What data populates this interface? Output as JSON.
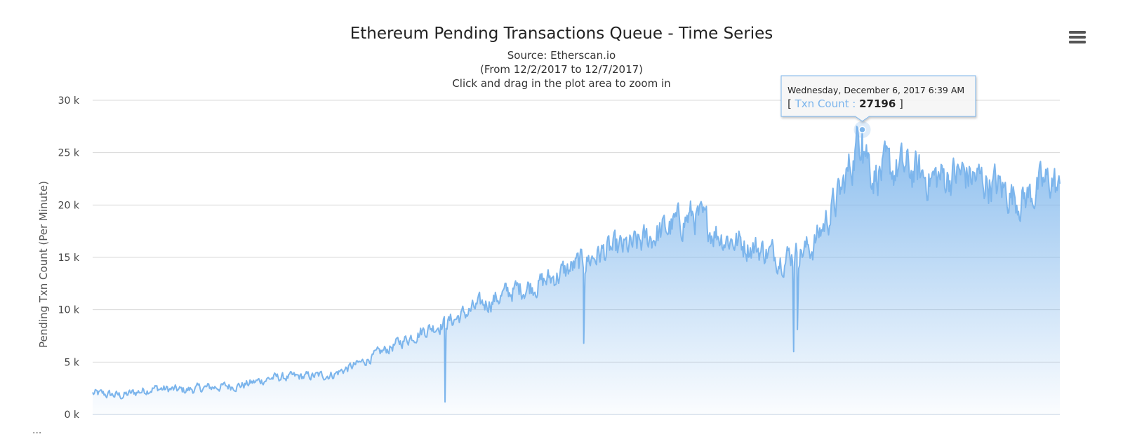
{
  "chart_data": {
    "type": "area",
    "title": "Ethereum Pending Transactions Queue - Time Series",
    "subtitle": [
      "Source: Etherscan.io",
      "(From 12/2/2017 to 12/7/2017)",
      "Click and drag in the plot area to zoom in"
    ],
    "ylabel": "Pending Txn Count (Per Minute)",
    "xlabel": "",
    "ylim": [
      0,
      30000
    ],
    "y_ticks": [
      0,
      5000,
      10000,
      15000,
      20000,
      25000,
      30000
    ],
    "y_tick_labels": [
      "0 k",
      "5 k",
      "10 k",
      "15 k",
      "20 k",
      "25 k",
      "30 k"
    ],
    "x_range": [
      "2017-12-02T00:00",
      "2017-12-07T09:00"
    ],
    "grid": true,
    "legend": "none",
    "series": [
      {
        "name": "Txn Count",
        "color": "#7cb5ec",
        "x": [
          "2017-12-02T00:00",
          "2017-12-02T04:00",
          "2017-12-02T08:00",
          "2017-12-02T12:00",
          "2017-12-02T16:00",
          "2017-12-02T20:00",
          "2017-12-03T00:00",
          "2017-12-03T04:00",
          "2017-12-03T08:00",
          "2017-12-03T12:00",
          "2017-12-03T16:00",
          "2017-12-03T20:00",
          "2017-12-04T00:00",
          "2017-12-04T04:00",
          "2017-12-04T08:00",
          "2017-12-04T12:00",
          "2017-12-04T16:00",
          "2017-12-04T20:00",
          "2017-12-05T00:00",
          "2017-12-05T04:00",
          "2017-12-05T08:00",
          "2017-12-05T12:00",
          "2017-12-05T16:00",
          "2017-12-05T20:00",
          "2017-12-06T00:00",
          "2017-12-06T04:00",
          "2017-12-06T06:39",
          "2017-12-06T08:00",
          "2017-12-06T12:00",
          "2017-12-06T16:00",
          "2017-12-06T20:00",
          "2017-12-07T00:00",
          "2017-12-07T04:00",
          "2017-12-07T08:00",
          "2017-12-07T09:00"
        ],
        "values": [
          2000,
          1800,
          2500,
          2300,
          2600,
          2800,
          3500,
          3600,
          3800,
          5000,
          6500,
          8000,
          9000,
          10500,
          11800,
          12600,
          14000,
          15500,
          16000,
          17500,
          19000,
          17000,
          16000,
          15000,
          16000,
          21500,
          27196,
          23000,
          23500,
          22500,
          23000,
          22000,
          20500,
          22500,
          21000
        ],
        "min_spikes": [
          {
            "x": "2017-12-03T23:00",
            "y": 1200
          },
          {
            "x": "2017-12-04T17:30",
            "y": 6800
          },
          {
            "x": "2017-12-05T21:30",
            "y": 6000
          },
          {
            "x": "2017-12-05T22:00",
            "y": 8100
          }
        ]
      }
    ],
    "tooltip": {
      "date": "Wednesday, December 6, 2017 6:39 AM",
      "series_label": "Txn Count",
      "value": "27196"
    }
  },
  "ui": {
    "menu_icon": "hamburger-menu-icon",
    "footer_text": "..."
  }
}
